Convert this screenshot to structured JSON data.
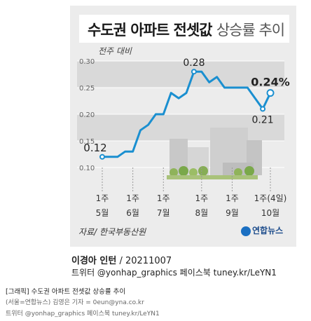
{
  "header": {
    "title_main": "수도권 아파트 전셋값",
    "title_sub": "상승률 추이"
  },
  "y_unit": "전주 대비",
  "source": "자료/ 한국부동산원",
  "logo": "연합뉴스",
  "author": {
    "name": "이경아 인턴",
    "date": "20211007"
  },
  "social": "트위터 @yonhap_graphics  페이스북 tuney.kr/LeYN1",
  "caption": {
    "title": "[그래픽] 수도권 아파트 전셋값 상승률 추이",
    "credit": "(서울=연합뉴스) 김영은 기자 = 0eun@yna.co.kr",
    "social": "트위터 @yonhap_graphics  페이스북 tuney.kr/LeYN1"
  },
  "colors": {
    "line": "#1a8fd0",
    "band": "#d9d9d9",
    "card": "#ececec"
  },
  "chart_data": {
    "type": "line",
    "ylim": [
      0.1,
      0.3
    ],
    "yticks": [
      "0.30",
      "0.25",
      "0.20",
      "0.15",
      "0.10"
    ],
    "xlabels": [
      {
        "index": 0,
        "week": "1주",
        "month": "5월"
      },
      {
        "index": 4,
        "week": "1주",
        "month": "6월"
      },
      {
        "index": 8,
        "week": "1주",
        "month": "7월"
      },
      {
        "index": 13,
        "week": "1주",
        "month": "8월"
      },
      {
        "index": 17,
        "week": "1주",
        "month": "9월"
      },
      {
        "index": 22,
        "week": "1주(4일)",
        "month": "10월"
      }
    ],
    "series": [
      {
        "values": [
          0.12,
          0.12,
          0.12,
          0.13,
          0.13,
          0.17,
          0.18,
          0.2,
          0.2,
          0.24,
          0.23,
          0.24,
          0.28,
          0.28,
          0.26,
          0.27,
          0.25,
          0.25,
          0.25,
          0.25,
          0.23,
          0.21,
          0.24
        ]
      }
    ],
    "data_labels": [
      {
        "index": 0,
        "text": "0.12"
      },
      {
        "index": 12,
        "text": "0.28"
      },
      {
        "index": 21,
        "text": "0.21"
      },
      {
        "index": 22,
        "text": "0.24%"
      }
    ]
  }
}
